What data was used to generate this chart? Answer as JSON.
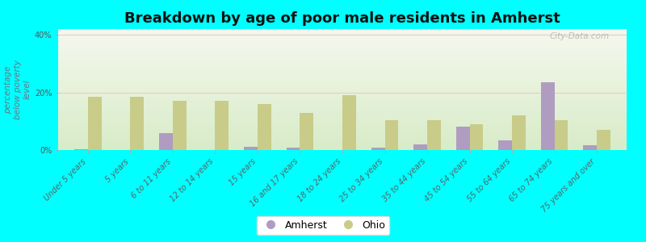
{
  "title": "Breakdown by age of poor male residents in Amherst",
  "ylabel": "percentage\nbelow poverty\nlevel",
  "categories": [
    "Under 5 years",
    "5 years",
    "6 to 11 years",
    "12 to 14 years",
    "15 years",
    "16 and 17 years",
    "18 to 24 years",
    "25 to 34 years",
    "35 to 44 years",
    "45 to 54 years",
    "55 to 64 years",
    "65 to 74 years",
    "75 years and over"
  ],
  "amherst_values": [
    0.4,
    0.0,
    6.0,
    0.0,
    1.2,
    0.8,
    0.0,
    0.8,
    2.0,
    8.0,
    3.5,
    23.5,
    1.8
  ],
  "ohio_values": [
    18.5,
    18.5,
    17.0,
    17.0,
    16.0,
    13.0,
    19.0,
    10.5,
    10.5,
    9.0,
    12.0,
    10.5,
    7.0
  ],
  "amherst_color": "#b09cc0",
  "ohio_color": "#c8cc88",
  "background_color": "#00ffff",
  "grad_top": "#f5f8ee",
  "grad_bottom": "#d8ecc8",
  "ylim": [
    0,
    42
  ],
  "yticks": [
    0,
    20,
    40
  ],
  "ytick_labels": [
    "0%",
    "20%",
    "40%"
  ],
  "bar_width": 0.32,
  "title_fontsize": 13,
  "axis_label_fontsize": 7.5,
  "tick_label_fontsize": 7,
  "legend_fontsize": 9,
  "watermark": "City-Data.com"
}
